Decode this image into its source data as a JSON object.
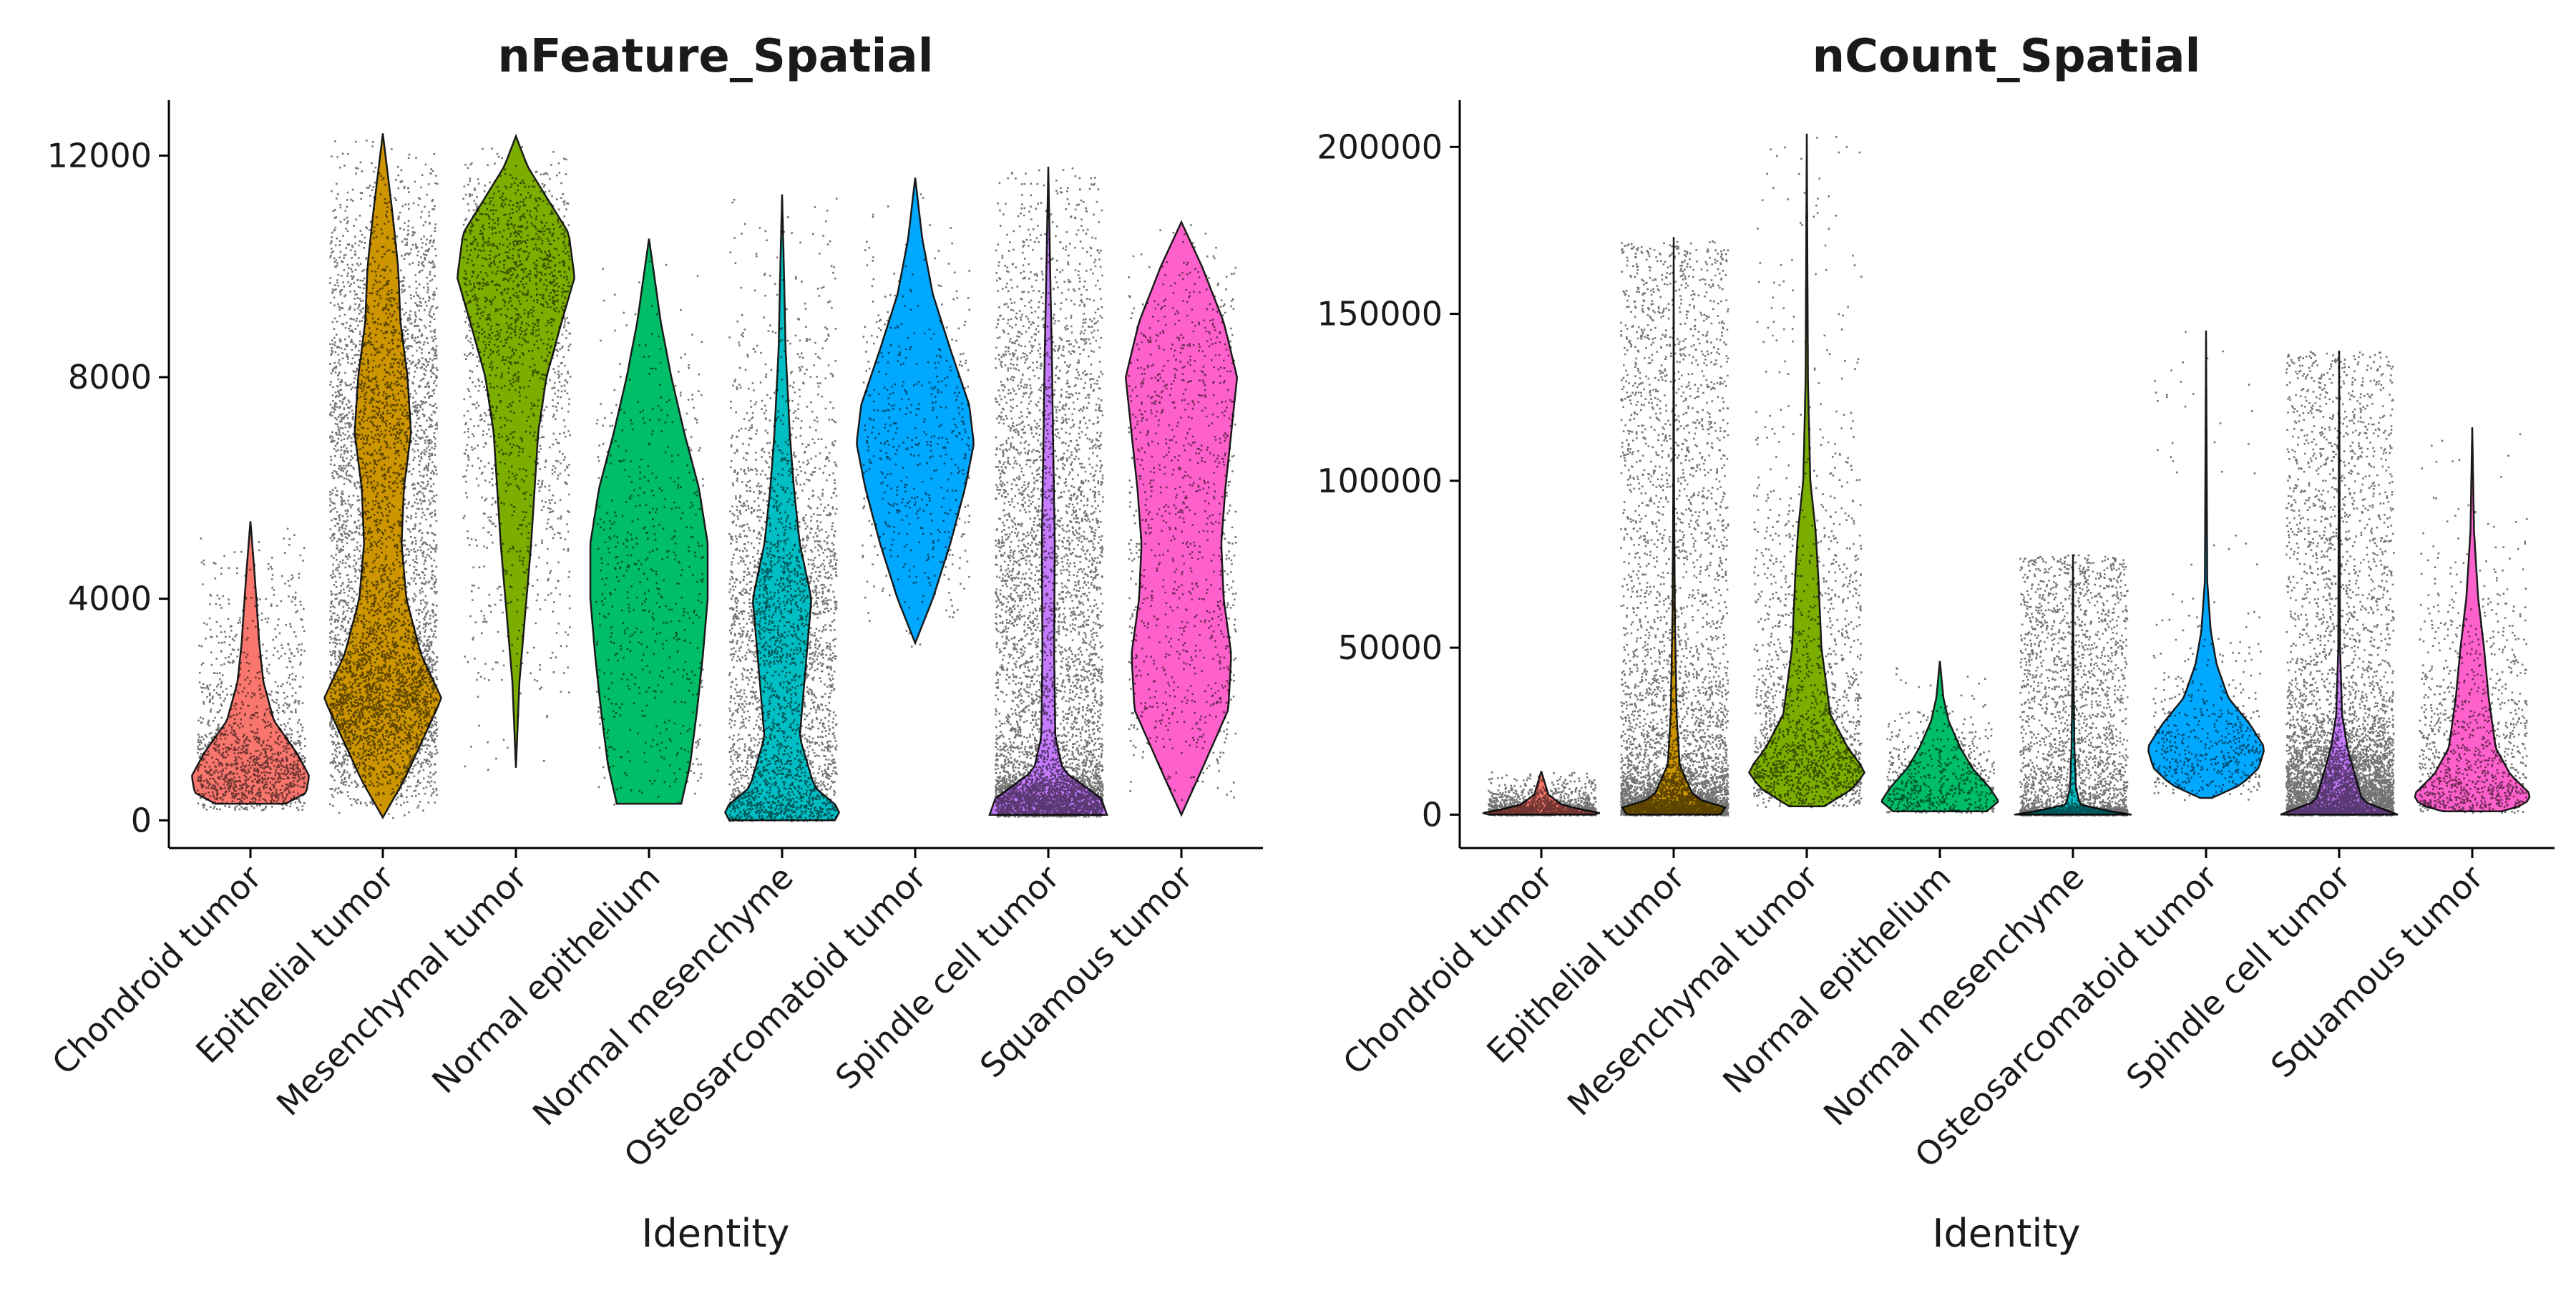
{
  "chart_data": [
    {
      "type": "violin",
      "title": "nFeature_Spatial",
      "xlabel": "Identity",
      "ylabel": "",
      "ylim": [
        -500,
        13000
      ],
      "yticks": [
        0,
        4000,
        8000,
        12000
      ],
      "categories": [
        "Chondroid tumor",
        "Epithelial tumor",
        "Mesenchymal tumor",
        "Normal epithelium",
        "Normal mesenchyme",
        "Osteosarcomatoid tumor",
        "Spindle cell tumor",
        "Squamous tumor"
      ],
      "colors": [
        "#F8766D",
        "#CD9600",
        "#7CAE00",
        "#00BE67",
        "#00BFC4",
        "#00A9FF",
        "#C77CFF",
        "#FF61CC"
      ],
      "series": [
        {
          "min": 300,
          "max": 5400,
          "jitter_min": 200,
          "jitter_max": 5300,
          "points": 1400,
          "profile": [
            [
              300,
              0.6
            ],
            [
              500,
              0.95
            ],
            [
              800,
              1.0
            ],
            [
              1200,
              0.8
            ],
            [
              1800,
              0.4
            ],
            [
              2500,
              0.22
            ],
            [
              3200,
              0.15
            ],
            [
              4000,
              0.1
            ],
            [
              4600,
              0.06
            ],
            [
              5400,
              0.0
            ]
          ]
        },
        {
          "min": 50,
          "max": 12400,
          "jitter_min": 50,
          "jitter_max": 12400,
          "points": 5000,
          "profile": [
            [
              50,
              0.0
            ],
            [
              700,
              0.35
            ],
            [
              1500,
              0.7
            ],
            [
              2200,
              1.0
            ],
            [
              3000,
              0.65
            ],
            [
              4000,
              0.4
            ],
            [
              5000,
              0.32
            ],
            [
              6000,
              0.36
            ],
            [
              7000,
              0.48
            ],
            [
              8000,
              0.42
            ],
            [
              9000,
              0.3
            ],
            [
              10000,
              0.26
            ],
            [
              11000,
              0.16
            ],
            [
              12400,
              0.0
            ]
          ]
        },
        {
          "min": 950,
          "max": 12350,
          "jitter_min": 900,
          "jitter_max": 12350,
          "points": 1700,
          "profile": [
            [
              950,
              0.0
            ],
            [
              2500,
              0.06
            ],
            [
              4000,
              0.18
            ],
            [
              5000,
              0.26
            ],
            [
              6000,
              0.32
            ],
            [
              7000,
              0.38
            ],
            [
              8000,
              0.52
            ],
            [
              9000,
              0.78
            ],
            [
              9800,
              1.0
            ],
            [
              10600,
              0.9
            ],
            [
              11200,
              0.55
            ],
            [
              11800,
              0.2
            ],
            [
              12350,
              0.0
            ]
          ]
        },
        {
          "min": 300,
          "max": 10500,
          "jitter_min": 300,
          "jitter_max": 10500,
          "points": 600,
          "profile": [
            [
              300,
              0.55
            ],
            [
              1000,
              0.7
            ],
            [
              2000,
              0.82
            ],
            [
              3000,
              0.92
            ],
            [
              4000,
              1.0
            ],
            [
              5000,
              1.0
            ],
            [
              6000,
              0.85
            ],
            [
              7000,
              0.6
            ],
            [
              8000,
              0.38
            ],
            [
              9000,
              0.2
            ],
            [
              10500,
              0.0
            ]
          ]
        },
        {
          "min": 0,
          "max": 11300,
          "jitter_min": 0,
          "jitter_max": 11300,
          "points": 3000,
          "profile": [
            [
              0,
              0.9
            ],
            [
              200,
              1.0
            ],
            [
              600,
              0.55
            ],
            [
              1500,
              0.3
            ],
            [
              2500,
              0.38
            ],
            [
              4000,
              0.5
            ],
            [
              5000,
              0.3
            ],
            [
              6000,
              0.2
            ],
            [
              7000,
              0.13
            ],
            [
              8500,
              0.06
            ],
            [
              10000,
              0.03
            ],
            [
              11300,
              0.0
            ]
          ]
        },
        {
          "min": 3200,
          "max": 11600,
          "jitter_min": 3100,
          "jitter_max": 11600,
          "points": 550,
          "profile": [
            [
              3200,
              0.0
            ],
            [
              4000,
              0.3
            ],
            [
              5000,
              0.6
            ],
            [
              6000,
              0.85
            ],
            [
              6800,
              1.0
            ],
            [
              7500,
              0.92
            ],
            [
              8500,
              0.6
            ],
            [
              9500,
              0.3
            ],
            [
              10500,
              0.12
            ],
            [
              11600,
              0.0
            ]
          ]
        },
        {
          "min": 100,
          "max": 11800,
          "jitter_min": 80,
          "jitter_max": 11800,
          "points": 5600,
          "profile": [
            [
              100,
              1.0
            ],
            [
              400,
              0.9
            ],
            [
              900,
              0.25
            ],
            [
              1500,
              0.12
            ],
            [
              3000,
              0.1
            ],
            [
              5000,
              0.11
            ],
            [
              7000,
              0.08
            ],
            [
              8500,
              0.06
            ],
            [
              9500,
              0.04
            ],
            [
              11800,
              0.0
            ]
          ]
        },
        {
          "min": 100,
          "max": 10800,
          "jitter_min": 100,
          "jitter_max": 10800,
          "points": 1100,
          "profile": [
            [
              100,
              0.0
            ],
            [
              800,
              0.3
            ],
            [
              2000,
              0.8
            ],
            [
              3000,
              0.85
            ],
            [
              4000,
              0.72
            ],
            [
              5000,
              0.68
            ],
            [
              6000,
              0.75
            ],
            [
              7000,
              0.85
            ],
            [
              8000,
              0.95
            ],
            [
              9000,
              0.72
            ],
            [
              10000,
              0.35
            ],
            [
              10800,
              0.0
            ]
          ]
        }
      ]
    },
    {
      "type": "violin",
      "title": "nCount_Spatial",
      "xlabel": "Identity",
      "ylabel": "",
      "ylim": [
        -10000,
        214000
      ],
      "yticks": [
        0,
        50000,
        100000,
        150000,
        200000
      ],
      "categories": [
        "Chondroid tumor",
        "Epithelial tumor",
        "Mesenchymal tumor",
        "Normal epithelium",
        "Normal mesenchyme",
        "Osteosarcomatoid tumor",
        "Spindle cell tumor",
        "Squamous tumor"
      ],
      "colors": [
        "#F8766D",
        "#CD9600",
        "#7CAE00",
        "#00BE67",
        "#00BFC4",
        "#00A9FF",
        "#C77CFF",
        "#FF61CC"
      ],
      "series": [
        {
          "min": 0,
          "max": 13000,
          "jitter_min": 0,
          "jitter_max": 13000,
          "points": 1400,
          "profile": [
            [
              0,
              0.9
            ],
            [
              500,
              1.0
            ],
            [
              1500,
              0.7
            ],
            [
              3000,
              0.35
            ],
            [
              6000,
              0.12
            ],
            [
              13000,
              0.0
            ]
          ]
        },
        {
          "min": 0,
          "max": 173000,
          "jitter_min": 0,
          "jitter_max": 172000,
          "points": 5000,
          "profile": [
            [
              0,
              0.8
            ],
            [
              1500,
              1.0
            ],
            [
              5000,
              0.35
            ],
            [
              15000,
              0.1
            ],
            [
              30000,
              0.05
            ],
            [
              60000,
              0.02
            ],
            [
              100000,
              0.006
            ],
            [
              173000,
              0.0
            ]
          ]
        },
        {
          "min": 2500,
          "max": 204000,
          "jitter_min": 2500,
          "jitter_max": 204000,
          "points": 1700,
          "profile": [
            [
              2500,
              0.3
            ],
            [
              8000,
              0.8
            ],
            [
              13000,
              1.0
            ],
            [
              20000,
              0.7
            ],
            [
              30000,
              0.4
            ],
            [
              50000,
              0.25
            ],
            [
              70000,
              0.2
            ],
            [
              85000,
              0.15
            ],
            [
              100000,
              0.06
            ],
            [
              130000,
              0.02
            ],
            [
              204000,
              0.0
            ]
          ]
        },
        {
          "min": 1000,
          "max": 46000,
          "jitter_min": 800,
          "jitter_max": 45000,
          "points": 600,
          "profile": [
            [
              1000,
              0.8
            ],
            [
              4000,
              1.0
            ],
            [
              8000,
              0.85
            ],
            [
              14000,
              0.55
            ],
            [
              20000,
              0.35
            ],
            [
              28000,
              0.15
            ],
            [
              35000,
              0.06
            ],
            [
              46000,
              0.0
            ]
          ]
        },
        {
          "min": 0,
          "max": 78000,
          "jitter_min": 0,
          "jitter_max": 78000,
          "points": 3000,
          "profile": [
            [
              0,
              1.0
            ],
            [
              800,
              0.7
            ],
            [
              3000,
              0.12
            ],
            [
              8000,
              0.05
            ],
            [
              20000,
              0.025
            ],
            [
              40000,
              0.01
            ],
            [
              78000,
              0.0
            ]
          ]
        },
        {
          "min": 5000,
          "max": 145000,
          "jitter_min": 4000,
          "jitter_max": 145000,
          "points": 550,
          "profile": [
            [
              5000,
              0.1
            ],
            [
              9000,
              0.6
            ],
            [
              14000,
              0.9
            ],
            [
              20000,
              1.0
            ],
            [
              27000,
              0.75
            ],
            [
              35000,
              0.38
            ],
            [
              45000,
              0.18
            ],
            [
              55000,
              0.08
            ],
            [
              70000,
              0.02
            ],
            [
              145000,
              0.0
            ]
          ]
        },
        {
          "min": 0,
          "max": 139000,
          "jitter_min": 0,
          "jitter_max": 139000,
          "points": 5600,
          "profile": [
            [
              0,
              1.0
            ],
            [
              1000,
              0.85
            ],
            [
              4000,
              0.4
            ],
            [
              10000,
              0.3
            ],
            [
              20000,
              0.14
            ],
            [
              30000,
              0.05
            ],
            [
              50000,
              0.015
            ],
            [
              139000,
              0.0
            ]
          ]
        },
        {
          "min": 1000,
          "max": 116000,
          "jitter_min": 800,
          "jitter_max": 116000,
          "points": 1100,
          "profile": [
            [
              1000,
              0.5
            ],
            [
              3000,
              0.9
            ],
            [
              6000,
              1.0
            ],
            [
              12000,
              0.65
            ],
            [
              20000,
              0.4
            ],
            [
              35000,
              0.28
            ],
            [
              50000,
              0.2
            ],
            [
              65000,
              0.1
            ],
            [
              85000,
              0.03
            ],
            [
              116000,
              0.0
            ]
          ]
        }
      ]
    }
  ]
}
